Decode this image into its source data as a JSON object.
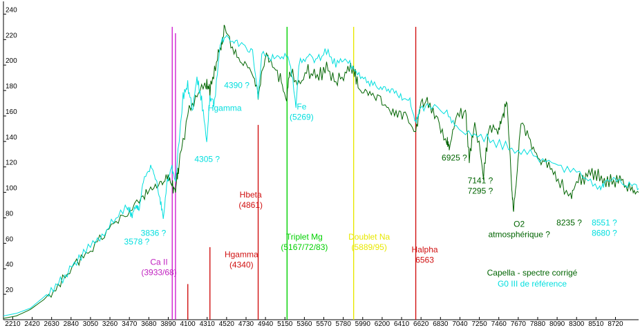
{
  "chart_data": {
    "type": "line",
    "title": "",
    "xlabel": "",
    "ylabel": "",
    "xlim": [
      2110,
      8970
    ],
    "ylim": [
      0,
      250
    ],
    "x_ticks": [
      2210,
      2420,
      2630,
      2840,
      3050,
      3260,
      3470,
      3680,
      3890,
      4100,
      4310,
      4520,
      4730,
      4940,
      5150,
      5360,
      5570,
      5780,
      5990,
      6200,
      6410,
      6620,
      6830,
      7040,
      7250,
      7460,
      7670,
      7880,
      8090,
      8300,
      8510,
      8720
    ],
    "y_ticks": [
      20,
      40,
      60,
      80,
      100,
      120,
      140,
      160,
      180,
      200,
      220,
      240
    ],
    "grid": false,
    "legend": "bottom-right",
    "series": [
      {
        "name": "Capella - spectre corrigé",
        "color": "#006400",
        "x": [
          2110,
          2250,
          2400,
          2550,
          2700,
          2850,
          3000,
          3150,
          3300,
          3450,
          3600,
          3700,
          3800,
          3880,
          3930,
          3968,
          4000,
          4100,
          4200,
          4300,
          4340,
          4400,
          4460,
          4500,
          4600,
          4700,
          4800,
          4861,
          4900,
          4950,
          5000,
          5100,
          5167,
          5200,
          5300,
          5400,
          5500,
          5600,
          5700,
          5800,
          5889,
          5950,
          6050,
          6150,
          6250,
          6350,
          6450,
          6563,
          6620,
          6700,
          6800,
          6900,
          6925,
          7000,
          7100,
          7141,
          7200,
          7295,
          7350,
          7450,
          7500,
          7550,
          7600,
          7620,
          7660,
          7700,
          7800,
          7900,
          8000,
          8100,
          8235,
          8300,
          8400,
          8500,
          8600,
          8700,
          8800,
          8900,
          8970
        ],
        "y": [
          1,
          3,
          8,
          16,
          28,
          40,
          52,
          63,
          75,
          85,
          95,
          103,
          108,
          112,
          105,
          100,
          120,
          160,
          176,
          185,
          180,
          200,
          215,
          230,
          210,
          200,
          195,
          176,
          192,
          208,
          200,
          190,
          170,
          195,
          185,
          195,
          190,
          198,
          185,
          195,
          198,
          180,
          178,
          176,
          165,
          162,
          160,
          148,
          172,
          170,
          158,
          140,
          135,
          160,
          165,
          126,
          155,
          115,
          148,
          150,
          160,
          170,
          105,
          85,
          120,
          155,
          140,
          125,
          120,
          110,
          96,
          108,
          112,
          115,
          108,
          110,
          108,
          104,
          100
        ]
      },
      {
        "name": "G0 III de référence",
        "color": "#00dede",
        "x": [
          2110,
          2250,
          2400,
          2550,
          2700,
          2850,
          3000,
          3150,
          3300,
          3450,
          3500,
          3550,
          3578,
          3620,
          3700,
          3750,
          3800,
          3836,
          3880,
          3930,
          3968,
          4050,
          4100,
          4150,
          4200,
          4250,
          4305,
          4340,
          4390,
          4450,
          4520,
          4600,
          4700,
          4800,
          4861,
          4900,
          5000,
          5100,
          5200,
          5269,
          5300,
          5400,
          5500,
          5600,
          5700,
          5800,
          5900,
          6000,
          6100,
          6200,
          6300,
          6400,
          6500,
          6563,
          6600,
          6700,
          6900,
          7000,
          7200,
          7400,
          7600,
          7800,
          8000,
          8200,
          8400,
          8551,
          8600,
          8700,
          8800,
          8900,
          8970
        ],
        "y": [
          3,
          5,
          9,
          18,
          28,
          42,
          54,
          65,
          78,
          88,
          82,
          90,
          85,
          110,
          120,
          112,
          95,
          80,
          110,
          120,
          108,
          175,
          185,
          165,
          190,
          172,
          140,
          175,
          170,
          215,
          225,
          218,
          215,
          210,
          175,
          210,
          205,
          208,
          205,
          168,
          200,
          208,
          205,
          210,
          200,
          205,
          195,
          190,
          185,
          182,
          180,
          175,
          172,
          155,
          165,
          170,
          162,
          150,
          145,
          140,
          135,
          130,
          125,
          118,
          112,
          102,
          108,
          110,
          107,
          105,
          103
        ]
      }
    ],
    "vertical_lines": [
      {
        "x": 3933,
        "y_top": 230,
        "color": "#d020d0"
      },
      {
        "x": 3968,
        "y_top": 225,
        "color": "#d020d0"
      },
      {
        "x": 4101,
        "y_top": 28,
        "color": "#d01010"
      },
      {
        "x": 4340,
        "y_top": 57,
        "color": "#d01010"
      },
      {
        "x": 4861,
        "y_top": 153,
        "color": "#d01010"
      },
      {
        "x": 5173,
        "y_top": 230,
        "color": "#00d000"
      },
      {
        "x": 5892,
        "y_top": 230,
        "color": "#e8e800"
      },
      {
        "x": 6563,
        "y_top": 230,
        "color": "#d01010"
      }
    ],
    "annotations": [
      {
        "id": "ca-ii",
        "lines": [
          "Ca II",
          "(3933/68)"
        ],
        "color": "#c020c0",
        "x": 3790,
        "y": 43
      },
      {
        "id": "hgamma-red",
        "lines": [
          "Hgamma",
          "(4340)"
        ],
        "color": "#d01010",
        "x": 4680,
        "y": 49
      },
      {
        "id": "hbeta",
        "lines": [
          "Hbeta",
          "(4861)"
        ],
        "color": "#d01010",
        "x": 4780,
        "y": 96
      },
      {
        "id": "triplet-mg",
        "lines": [
          "Triplet Mg",
          "(5167/72/83)"
        ],
        "color": "#00d000",
        "x": 5360,
        "y": 63
      },
      {
        "id": "doublet-na",
        "lines": [
          "Doublet Na",
          "(5889/95)"
        ],
        "color": "#e8e800",
        "x": 6060,
        "y": 63
      },
      {
        "id": "halpha",
        "lines": [
          "Halpha",
          "6563"
        ],
        "color": "#d01010",
        "x": 6660,
        "y": 53
      },
      {
        "id": "fe",
        "lines": [
          "Fe",
          "(5269)"
        ],
        "color": "#00dede",
        "x": 5330,
        "y": 165
      },
      {
        "id": "h4390",
        "lines": [
          "4390 ?"
        ],
        "color": "#00dede",
        "x": 4630,
        "y": 182
      },
      {
        "id": "hgamma-cyan",
        "lines": [
          "Hgamma"
        ],
        "color": "#00dede",
        "x": 4500,
        "y": 164
      },
      {
        "id": "l4305",
        "lines": [
          "4305 ?"
        ],
        "color": "#00dede",
        "x": 4310,
        "y": 124
      },
      {
        "id": "l3578",
        "lines": [
          "3578 ?"
        ],
        "color": "#00dede",
        "x": 3550,
        "y": 59
      },
      {
        "id": "l3836",
        "lines": [
          "3836 ?"
        ],
        "color": "#00dede",
        "x": 3730,
        "y": 66
      },
      {
        "id": "l6925",
        "lines": [
          "6925 ?"
        ],
        "color": "#006400",
        "x": 6980,
        "y": 125
      },
      {
        "id": "l7141",
        "lines": [
          "7141 ?",
          "7295 ?"
        ],
        "color": "#006400",
        "x": 7260,
        "y": 107
      },
      {
        "id": "l8235",
        "lines": [
          "8235 ?"
        ],
        "color": "#006400",
        "x": 8220,
        "y": 74
      },
      {
        "id": "o2",
        "lines": [
          "O2",
          "atmosphérique ?"
        ],
        "color": "#006400",
        "x": 7680,
        "y": 73
      },
      {
        "id": "l8551",
        "lines": [
          "8551 ?",
          "8680 ?"
        ],
        "color": "#00dede",
        "x": 8600,
        "y": 74
      }
    ],
    "legend_entries": [
      {
        "label": "Capella - spectre corrigé",
        "color": "#006400"
      },
      {
        "label": "G0 III de référence",
        "color": "#00dede"
      }
    ]
  }
}
